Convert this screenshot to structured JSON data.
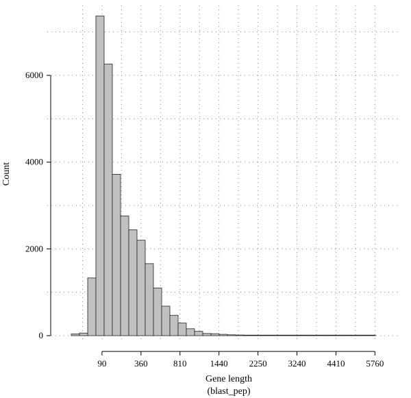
{
  "chart_data": {
    "type": "bar",
    "xlabel": "Gene length",
    "xlabel_sub": "(blast_pep)",
    "ylabel": "Count",
    "x_scale": "sqrt",
    "xlim": [
      0,
      6400
    ],
    "ylim": [
      0,
      7800
    ],
    "x_ticks": [
      90,
      360,
      810,
      1440,
      2250,
      3240,
      4410,
      5760
    ],
    "y_ticks": [
      0,
      2000,
      4000,
      6000
    ],
    "grid": true,
    "bin_width_sqrt": 2,
    "bins": [
      {
        "x_start": 4,
        "x_end": 16,
        "count": 40
      },
      {
        "x_start": 16,
        "x_end": 36,
        "count": 60
      },
      {
        "x_start": 36,
        "x_end": 64,
        "count": 1330
      },
      {
        "x_start": 64,
        "x_end": 100,
        "count": 7370
      },
      {
        "x_start": 100,
        "x_end": 144,
        "count": 6260
      },
      {
        "x_start": 144,
        "x_end": 196,
        "count": 3720
      },
      {
        "x_start": 196,
        "x_end": 256,
        "count": 2760
      },
      {
        "x_start": 256,
        "x_end": 324,
        "count": 2440
      },
      {
        "x_start": 324,
        "x_end": 400,
        "count": 2200
      },
      {
        "x_start": 400,
        "x_end": 484,
        "count": 1660
      },
      {
        "x_start": 484,
        "x_end": 576,
        "count": 1100
      },
      {
        "x_start": 576,
        "x_end": 676,
        "count": 680
      },
      {
        "x_start": 676,
        "x_end": 784,
        "count": 470
      },
      {
        "x_start": 784,
        "x_end": 900,
        "count": 290
      },
      {
        "x_start": 900,
        "x_end": 1024,
        "count": 160
      },
      {
        "x_start": 1024,
        "x_end": 1156,
        "count": 100
      },
      {
        "x_start": 1156,
        "x_end": 1296,
        "count": 50
      },
      {
        "x_start": 1296,
        "x_end": 1444,
        "count": 45
      },
      {
        "x_start": 1444,
        "x_end": 1600,
        "count": 30
      },
      {
        "x_start": 1600,
        "x_end": 1764,
        "count": 20
      },
      {
        "x_start": 1764,
        "x_end": 1936,
        "count": 15
      },
      {
        "x_start": 1936,
        "x_end": 2116,
        "count": 12
      },
      {
        "x_start": 2116,
        "x_end": 2304,
        "count": 10
      },
      {
        "x_start": 2304,
        "x_end": 2500,
        "count": 8
      },
      {
        "x_start": 2500,
        "x_end": 2704,
        "count": 6
      },
      {
        "x_start": 2704,
        "x_end": 2916,
        "count": 5
      },
      {
        "x_start": 2916,
        "x_end": 3136,
        "count": 5
      },
      {
        "x_start": 3136,
        "x_end": 3364,
        "count": 4
      },
      {
        "x_start": 3364,
        "x_end": 3600,
        "count": 4
      },
      {
        "x_start": 3600,
        "x_end": 3844,
        "count": 3
      },
      {
        "x_start": 3844,
        "x_end": 4096,
        "count": 3
      },
      {
        "x_start": 4096,
        "x_end": 4356,
        "count": 3
      },
      {
        "x_start": 4356,
        "x_end": 4624,
        "count": 2
      },
      {
        "x_start": 4624,
        "x_end": 4900,
        "count": 2
      },
      {
        "x_start": 4900,
        "x_end": 5184,
        "count": 2
      },
      {
        "x_start": 5184,
        "x_end": 5476,
        "count": 2
      },
      {
        "x_start": 5476,
        "x_end": 5776,
        "count": 2
      }
    ]
  }
}
